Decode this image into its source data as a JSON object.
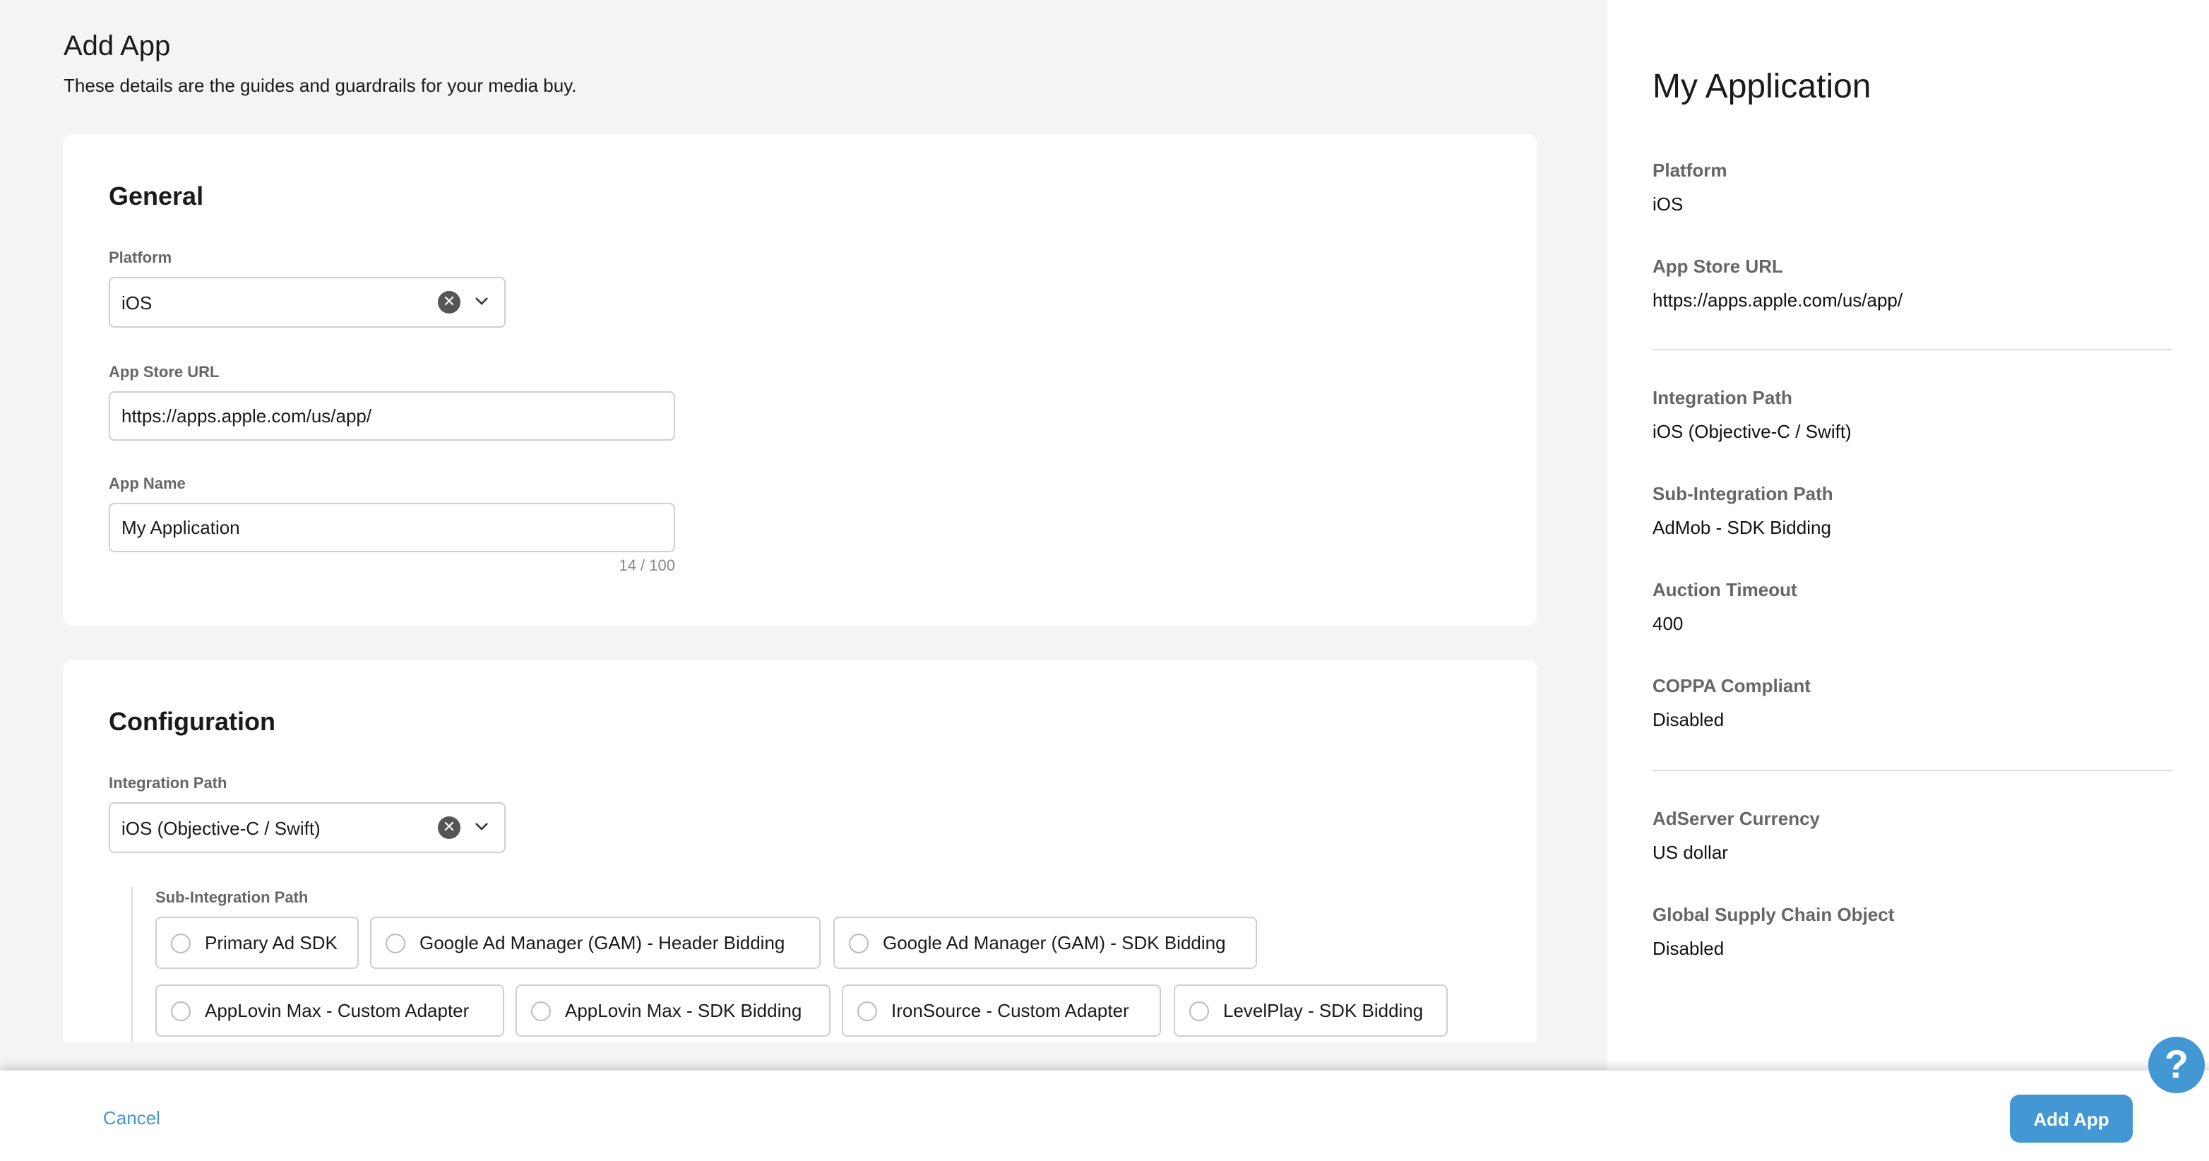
{
  "header": {
    "title": "Add App",
    "subtitle": "These details are the guides and guardrails for your media buy."
  },
  "general": {
    "title": "General",
    "platform": {
      "label": "Platform",
      "value": "iOS"
    },
    "app_store_url": {
      "label": "App Store URL",
      "value": "https://apps.apple.com/us/app/"
    },
    "app_name": {
      "label": "App Name",
      "value": "My Application",
      "counter": "14 / 100"
    }
  },
  "configuration": {
    "title": "Configuration",
    "integration_path": {
      "label": "Integration Path",
      "value": "iOS (Objective-C / Swift)"
    },
    "sub_integration": {
      "label": "Sub-Integration Path",
      "options": [
        "Primary Ad SDK",
        "Google Ad Manager (GAM) - Header Bidding",
        "Google Ad Manager (GAM) - SDK Bidding",
        "AppLovin Max - Custom Adapter",
        "AppLovin Max - SDK Bidding",
        "IronSource - Custom Adapter",
        "LevelPlay - SDK Bidding"
      ]
    }
  },
  "summary": {
    "title": "My Application",
    "items": [
      {
        "label": "Platform",
        "value": "iOS"
      },
      {
        "label": "App Store URL",
        "value": "https://apps.apple.com/us/app/"
      },
      {
        "label": "Integration Path",
        "value": "iOS (Objective-C / Swift)"
      },
      {
        "label": "Sub-Integration Path",
        "value": "AdMob - SDK Bidding"
      },
      {
        "label": "Auction Timeout",
        "value": "400"
      },
      {
        "label": "COPPA Compliant",
        "value": "Disabled"
      },
      {
        "label": "AdServer Currency",
        "value": "US dollar"
      },
      {
        "label": "Global Supply Chain Object",
        "value": "Disabled"
      }
    ]
  },
  "footer": {
    "cancel": "Cancel",
    "submit": "Add App",
    "help_icon": "question-icon"
  },
  "colors": {
    "accent": "#4397d3",
    "background": "#f4f4f4"
  }
}
